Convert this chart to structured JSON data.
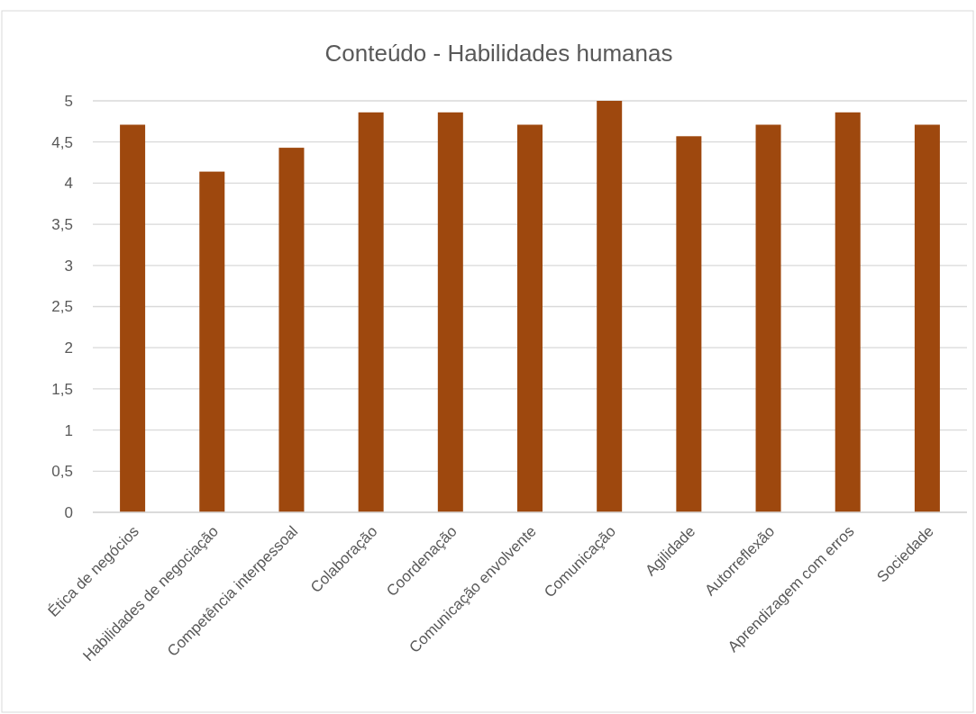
{
  "chart_data": {
    "type": "bar",
    "title": "Conteúdo - Habilidades humanas",
    "categories": [
      "Ética de negócios",
      "Habilidades de negociação",
      "Competência interpessoal",
      "Colaboração",
      "Coordenação",
      "Comunicação envolvente",
      "Comunicação",
      "Agilidade",
      "Autorreflexão",
      "Aprendizagem com erros",
      "Sociedade"
    ],
    "values": [
      4.71,
      4.14,
      4.43,
      4.86,
      4.86,
      4.71,
      5,
      4.57,
      4.71,
      4.86,
      4.71
    ],
    "color": "#9e480e",
    "ylim": [
      0,
      5
    ],
    "yticks": [
      0,
      {
        "value": 0.5,
        "label": "0,5"
      },
      1,
      {
        "value": 1.5,
        "label": "1,5"
      },
      2,
      {
        "value": 2.5,
        "label": "2,5"
      },
      3,
      {
        "value": 3.5,
        "label": "3,5"
      },
      4,
      {
        "value": 4.5,
        "label": "4,5"
      },
      5
    ],
    "grid": "y"
  }
}
